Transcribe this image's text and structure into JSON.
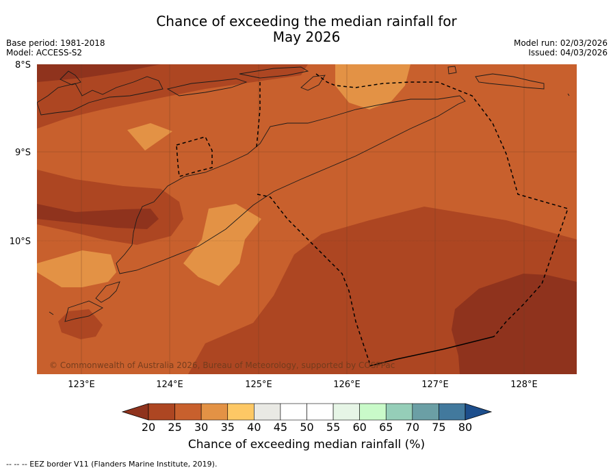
{
  "title_line1": "Chance of exceeding the median rainfall for",
  "title_line2": "May 2026",
  "meta_left": [
    "Base period: 1981-2018",
    "Model: ACCESS-S2"
  ],
  "meta_right": [
    "Model run: 02/03/2026",
    "Issued: 04/03/2026"
  ],
  "lat_labels": [
    "8°S",
    "9°S",
    "10°S"
  ],
  "lon_labels": [
    "123°E",
    "124°E",
    "125°E",
    "126°E",
    "127°E",
    "128°E"
  ],
  "copyright": "© Commonwealth of Australia 2026, Bureau of Meteorology, supported by COSPPac",
  "colorbar": {
    "ticks": [
      "20",
      "25",
      "30",
      "35",
      "40",
      "45",
      "50",
      "55",
      "60",
      "65",
      "70",
      "75",
      "80"
    ],
    "colors": [
      "#ad4622",
      "#c8602d",
      "#e39245",
      "#fdc865",
      "#e9e9e4",
      "#ffffff",
      "#ffffff",
      "#e6f5e6",
      "#c9fac9",
      "#95ceb8",
      "#6b9fa5",
      "#42799d"
    ],
    "under_color": "#8f331d",
    "over_color": "#1d4e8c",
    "label": "Chance of exceeding median rainfall (%)"
  },
  "footer": "--  --  -- EEZ border V11 (Flanders Marine Institute, 2019)."
}
